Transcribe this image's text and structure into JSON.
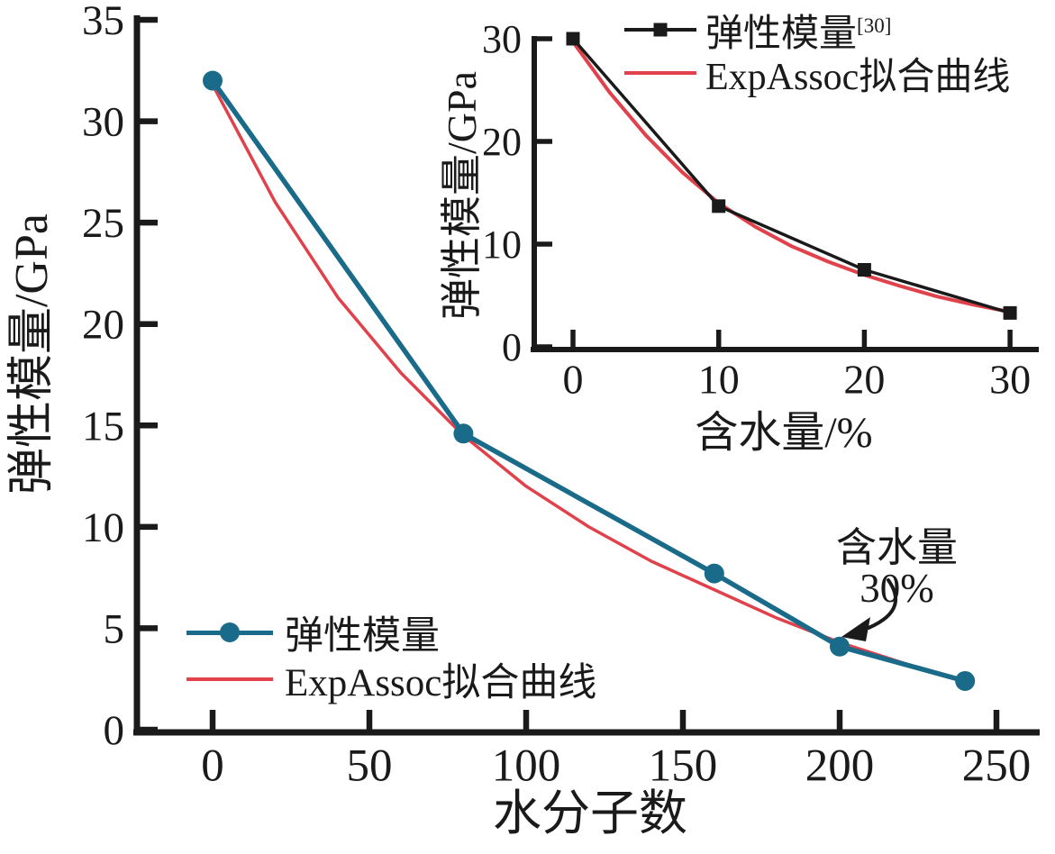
{
  "colors": {
    "background": "#ffffff",
    "ink": "#1a1a1a",
    "series_teal": "#1a6b8a",
    "fit_red": "#e0414a",
    "ref_black": "#1a1a1a"
  },
  "chart_data": [
    {
      "id": "main",
      "type": "line",
      "xlabel": "水分子数",
      "ylabel": "弹性模量/GPa",
      "xlim": [
        0,
        250
      ],
      "ylim": [
        0,
        35
      ],
      "x_ticks": [
        0,
        50,
        100,
        150,
        200,
        250
      ],
      "y_ticks": [
        0,
        5,
        10,
        15,
        20,
        25,
        30,
        35
      ],
      "grid": false,
      "series": [
        {
          "name": "弹性模量",
          "marker": "circle",
          "color": "#1a6b8a",
          "x": [
            0,
            80,
            160,
            200,
            240
          ],
          "y": [
            32.0,
            14.6,
            7.7,
            4.1,
            2.4
          ]
        },
        {
          "name": "ExpAssoc拟合曲线",
          "marker": "none",
          "color": "#e0414a",
          "x": [
            0,
            20,
            40,
            60,
            80,
            100,
            120,
            140,
            160,
            180,
            200,
            220,
            240
          ],
          "y": [
            31.8,
            26.0,
            21.3,
            17.6,
            14.5,
            12.0,
            10.0,
            8.3,
            6.9,
            5.5,
            4.3,
            3.3,
            2.4
          ]
        }
      ],
      "legend": {
        "position": "lower-left",
        "entries": [
          {
            "label": "弹性模量",
            "sup": ""
          },
          {
            "label": "ExpAssoc拟合曲线",
            "sup": ""
          }
        ]
      },
      "annotation": {
        "text": "含水量30%",
        "target_point_x": 200
      }
    },
    {
      "id": "inset",
      "type": "line",
      "xlabel": "含水量/%",
      "ylabel": "弹性模量/GPa",
      "xlim": [
        0,
        30
      ],
      "ylim": [
        0,
        30
      ],
      "x_ticks": [
        0,
        10,
        20,
        30
      ],
      "y_ticks": [
        0,
        10,
        20,
        30
      ],
      "grid": false,
      "series": [
        {
          "name": "弹性模量[30]",
          "marker": "square",
          "color": "#1a1a1a",
          "x": [
            0,
            10,
            20,
            30
          ],
          "y": [
            30.0,
            13.7,
            7.5,
            3.3
          ]
        },
        {
          "name": "ExpAssoc拟合曲线",
          "marker": "none",
          "color": "#e0414a",
          "x": [
            0,
            2.5,
            5,
            7.5,
            10,
            12.5,
            15,
            17.5,
            20,
            22.5,
            25,
            27.5,
            30
          ],
          "y": [
            29.7,
            24.8,
            20.6,
            17.0,
            14.0,
            11.7,
            9.8,
            8.3,
            7.0,
            5.9,
            4.9,
            4.1,
            3.4
          ]
        }
      ],
      "legend": {
        "position": "upper-right",
        "entries": [
          {
            "label": "弹性模量",
            "sup": "[30]"
          },
          {
            "label": "ExpAssoc拟合曲线",
            "sup": ""
          }
        ]
      }
    }
  ]
}
